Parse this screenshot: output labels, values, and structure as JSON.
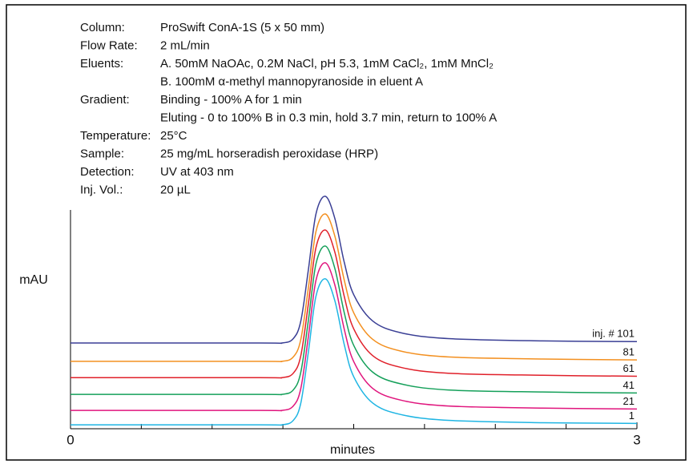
{
  "conditions": [
    {
      "label": "Column:",
      "lines": [
        "ProSwift ConA-1S (5 x 50 mm)"
      ]
    },
    {
      "label": "Flow Rate:",
      "lines": [
        "2 mL/min"
      ]
    },
    {
      "label": "Eluents:",
      "lines": [
        "A. 50mM NaOAc, 0.2M NaCl, pH 5.3, 1mM CaCl₂, 1mM MnCl₂",
        "B. 100mM α-methyl mannopyranoside in eluent A"
      ]
    },
    {
      "label": "Gradient:",
      "lines": [
        "Binding - 100% A for 1 min",
        "Eluting - 0 to 100% B in 0.3 min, hold 3.7 min, return to 100% A"
      ]
    },
    {
      "label": "Temperature:",
      "lines": [
        "25°C"
      ]
    },
    {
      "label": "Sample:",
      "lines": [
        "25 mg/mL horseradish peroxidase (HRP)"
      ]
    },
    {
      "label": "Detection:",
      "lines": [
        "UV at 403 nm"
      ]
    },
    {
      "label": "Inj. Vol.:",
      "lines": [
        "20 µL"
      ]
    }
  ],
  "chart_data": {
    "type": "line",
    "x_label": "minutes",
    "y_label": "mAU",
    "x": [
      0,
      1.0,
      1.12,
      1.18,
      1.22,
      1.26,
      1.3,
      1.35,
      1.4,
      1.45,
      1.5,
      1.6,
      1.75,
      2.0,
      2.5,
      3.0
    ],
    "xlim": [
      0,
      3
    ],
    "ylim": [
      0,
      100
    ],
    "xticks": [
      0,
      3
    ],
    "xminor_ticks": [
      0.375,
      0.75,
      1.125,
      1.5,
      1.875,
      2.25,
      2.625
    ],
    "series": [
      {
        "name": "1",
        "color": "#1fb5e3",
        "values": [
          1.7,
          1.7,
          1.7,
          3.6,
          11.1,
          33.1,
          57.0,
          64.5,
          55.1,
          36.2,
          22.4,
          11.1,
          6.1,
          3.6,
          2.6,
          2.3
        ]
      },
      {
        "name": "21",
        "color": "#e0157d",
        "values": [
          7.9,
          7.9,
          7.9,
          9.8,
          17.4,
          39.7,
          63.8,
          71.4,
          61.9,
          42.8,
          28.9,
          17.4,
          12.3,
          9.8,
          8.9,
          8.5
        ]
      },
      {
        "name": "41",
        "color": "#15a05a",
        "values": [
          14.8,
          14.8,
          14.8,
          16.7,
          24.4,
          46.7,
          70.9,
          78.6,
          69.0,
          49.9,
          35.9,
          24.4,
          19.3,
          16.7,
          15.8,
          15.4
        ]
      },
      {
        "name": "61",
        "color": "#e0202a",
        "values": [
          22,
          22,
          22,
          23.9,
          31.5,
          53.8,
          77.9,
          85.5,
          76.0,
          56.9,
          43.0,
          31.5,
          26.4,
          23.9,
          23.0,
          22.6
        ]
      },
      {
        "name": "81",
        "color": "#f39020",
        "values": [
          29,
          29,
          29,
          30.9,
          38.5,
          60.7,
          84.8,
          92.4,
          82.9,
          63.9,
          49.9,
          38.5,
          33.4,
          30.9,
          30.0,
          29.6
        ]
      },
      {
        "name": "inj. # 101",
        "color": "#3a3f95",
        "values": [
          36.9,
          36.9,
          36.9,
          38.8,
          46.4,
          68.5,
          92.4,
          100,
          90.5,
          71.6,
          57.7,
          46.4,
          41.3,
          38.8,
          37.8,
          37.5
        ]
      }
    ]
  }
}
